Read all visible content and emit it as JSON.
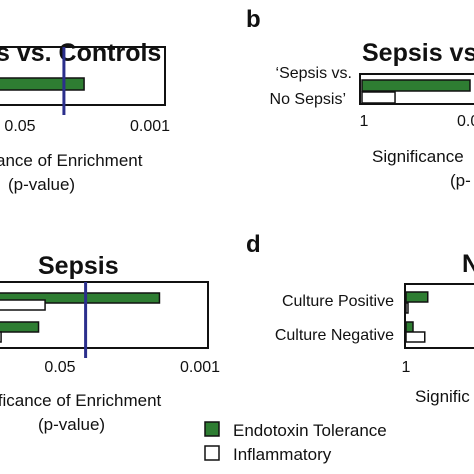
{
  "colors": {
    "endotoxin": "#2e7d32",
    "inflammatory": "#ffffff",
    "threshold": "#2b2f8c",
    "frame": "#111111"
  },
  "legend": {
    "endotoxin_label": "Endotoxin Tolerance",
    "inflammatory_label": "Inflammatory"
  },
  "chart_data": [
    {
      "type": "bar",
      "orientation": "horizontal",
      "title": "s vs. Controls",
      "xlabel_line1": "ance of Enrichment",
      "xlabel_line2": "(p-value)",
      "x_scale": "log-reversed",
      "ticks": [
        "0.05",
        "0.001"
      ],
      "threshold": 0.05,
      "categories": [
        ""
      ],
      "series": [
        {
          "name": "Endotoxin Tolerance",
          "values": [
            0.02
          ]
        }
      ]
    },
    {
      "type": "bar",
      "orientation": "horizontal",
      "panel_label": "b",
      "title": "Sepsis vs",
      "xlabel_line1": "Significance",
      "xlabel_line2": "(p-",
      "x_scale": "log-reversed",
      "ticks": [
        "1",
        "0.0"
      ],
      "categories": [
        "‘Sepsis vs. No Sepsis’"
      ],
      "category_lines": [
        [
          "‘Sepsis vs.",
          "No Sepsis’"
        ]
      ],
      "series": [
        {
          "name": "Endotoxin Tolerance",
          "values": [
            0.05
          ]
        },
        {
          "name": "Inflammatory",
          "values": [
            0.4
          ]
        }
      ]
    },
    {
      "type": "bar",
      "orientation": "horizontal",
      "title": "Sepsis",
      "xlabel_line1": "ificance of Enrichment",
      "xlabel_line2": "(p-value)",
      "x_scale": "log-reversed",
      "ticks": [
        "0.05",
        "0.001"
      ],
      "threshold": 0.05,
      "categories": [
        "",
        ""
      ],
      "series": [
        {
          "name": "Endotoxin Tolerance",
          "values": [
            0.004,
            0.25
          ]
        },
        {
          "name": "Inflammatory",
          "values": [
            0.2,
            0.9
          ]
        }
      ]
    },
    {
      "type": "bar",
      "orientation": "horizontal",
      "panel_label": "d",
      "title": "N",
      "xlabel_line1": "Signific",
      "xlabel_line2": "",
      "x_scale": "log-reversed",
      "ticks": [
        "1"
      ],
      "categories": [
        "Culture Positive",
        "Culture Negative"
      ],
      "series": [
        {
          "name": "Endotoxin Tolerance",
          "values": [
            0.5,
            0.8
          ]
        },
        {
          "name": "Inflammatory",
          "values": [
            0.95,
            0.55
          ]
        }
      ]
    }
  ]
}
